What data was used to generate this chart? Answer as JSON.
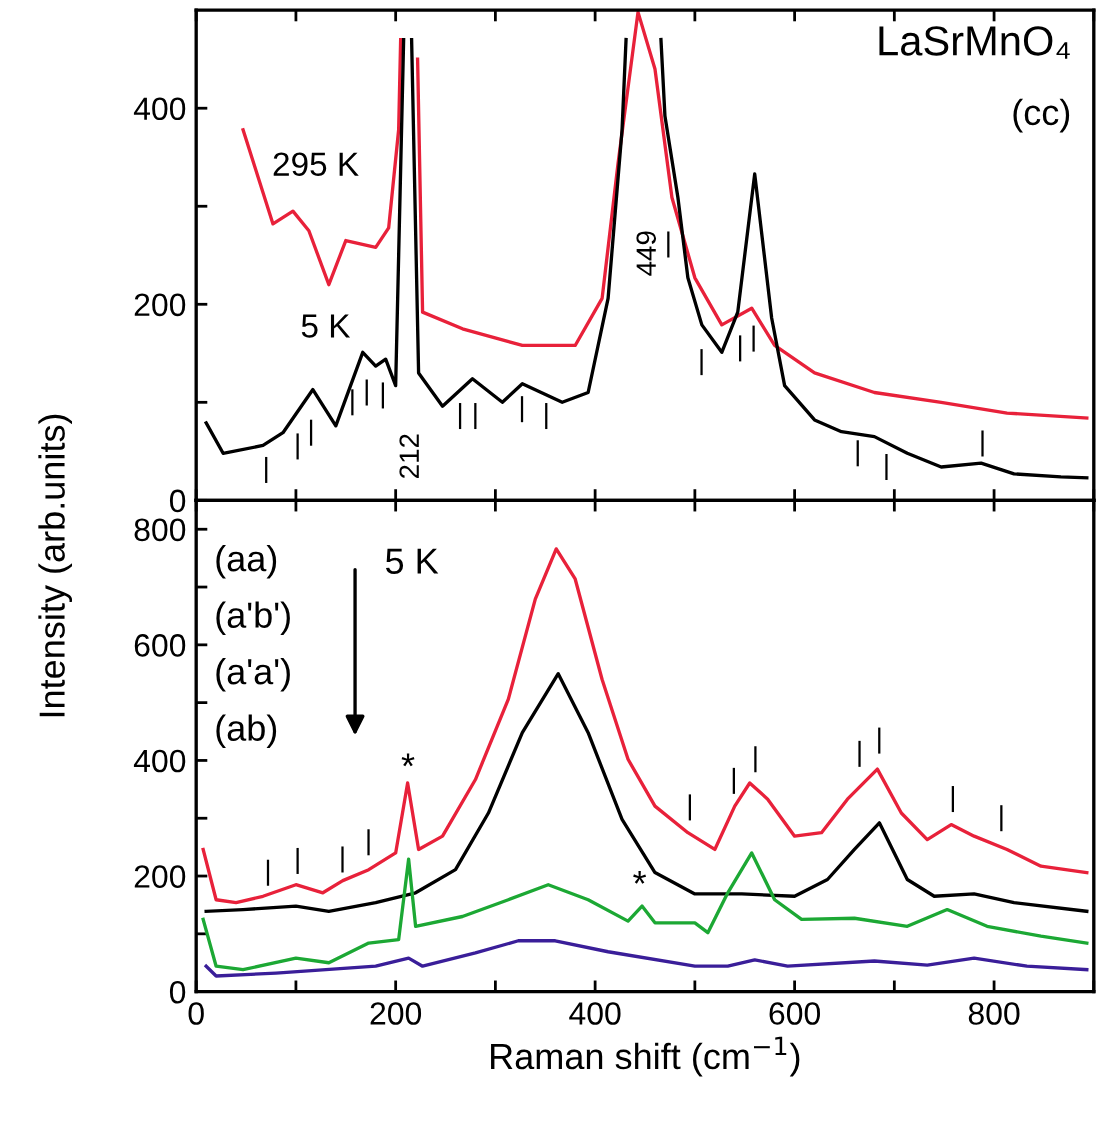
{
  "chart_data": [
    {
      "type": "line",
      "ylabel": "Intensity (arb.units)",
      "xlim": [
        0,
        900
      ],
      "ylim": [
        0,
        500
      ],
      "xticks": [
        0,
        {
          "value": 100,
          "label": null
        },
        200,
        {
          "value": 300,
          "label": null
        },
        400,
        {
          "value": 500,
          "label": null
        },
        600,
        {
          "value": 700,
          "label": null
        },
        800,
        {
          "value": 900,
          "label": null
        }
      ],
      "yticks": [
        0,
        {
          "value": 100,
          "label": null
        },
        200,
        {
          "value": 300,
          "label": null
        },
        400
      ],
      "tick_labels": "y",
      "grid": false,
      "legend": false,
      "series": [
        {
          "color": "#e8213a",
          "x": [
            47,
            77,
            97,
            113,
            133,
            150,
            180,
            193,
            203,
            205,
            207,
            220,
            222,
            227,
            267,
            327,
            380,
            407,
            423,
            443,
            460,
            477,
            500,
            527,
            557,
            580,
            620,
            680,
            747,
            813,
            893
          ],
          "values": [
            378,
            282,
            295,
            275,
            220,
            265,
            258,
            278,
            378,
            470,
            null,
            null,
            450,
            192,
            175,
            158,
            158,
            206,
            344,
            498,
            440,
            309,
            227,
            179,
            196,
            158,
            130,
            110,
            100,
            89,
            84
          ]
        },
        {
          "color": "#000000",
          "x": [
            10,
            27,
            67,
            87,
            117,
            140,
            167,
            180,
            190,
            200,
            208,
            210,
            214,
            216,
            223,
            247,
            277,
            307,
            327,
            367,
            393,
            413,
            427,
            431,
            437,
            460,
            466,
            470,
            483,
            493,
            507,
            527,
            543,
            560,
            577,
            590,
            620,
            647,
            680,
            713,
            747,
            787,
            820,
            867,
            893
          ],
          "values": [
            79,
            48,
            56,
            69,
            113,
            76,
            151,
            137,
            144,
            117,
            470,
            null,
            null,
            470,
            130,
            96,
            124,
            100,
            119,
            100,
            110,
            206,
            378,
            470,
            null,
            null,
            470,
            392,
            309,
            227,
            179,
            151,
            192,
            333,
            186,
            117,
            82,
            70,
            65,
            48,
            34,
            38,
            27,
            24,
            23
          ]
        }
      ],
      "annotations": [
        "LaSrMnO₄",
        "(cc)",
        "295 K",
        "5 K",
        "212",
        "449",
        "|",
        "|",
        "|",
        "|",
        "|",
        "|",
        "|",
        "|",
        "|",
        "|",
        "|",
        "|",
        "|",
        "|",
        "|",
        "|",
        "|"
      ]
    },
    {
      "type": "line",
      "xlabel": "Raman shift (cm$^{−1}$)",
      "xlim": [
        0,
        900
      ],
      "ylim": [
        0,
        850
      ],
      "xticks": [
        0,
        {
          "value": 100,
          "label": null
        },
        200,
        {
          "value": 300,
          "label": null
        },
        400,
        {
          "value": 500,
          "label": null
        },
        600,
        {
          "value": 700,
          "label": null
        },
        800,
        {
          "value": 900,
          "label": null
        }
      ],
      "yticks": [
        0,
        {
          "value": 100,
          "label": null
        },
        200,
        {
          "value": 300,
          "label": null
        },
        400,
        {
          "value": 500,
          "label": null
        },
        600,
        {
          "value": 700,
          "label": null
        },
        800
      ],
      "grid": false,
      "legend": false,
      "series": [
        {
          "color": "#e8213a",
          "x": [
            7,
            20,
            40,
            67,
            100,
            127,
            147,
            173,
            200,
            212,
            223,
            247,
            280,
            313,
            340,
            361,
            380,
            407,
            433,
            460,
            493,
            520,
            540,
            555,
            573,
            600,
            627,
            653,
            683,
            707,
            733,
            757,
            780,
            813,
            847,
            893
          ],
          "values": [
            246,
            159,
            154,
            165,
            185,
            171,
            192,
            211,
            240,
            361,
            246,
            269,
            367,
            506,
            679,
            766,
            714,
            540,
            402,
            321,
            275,
            246,
            321,
            361,
            333,
            269,
            275,
            333,
            385,
            309,
            263,
            289,
            269,
            246,
            217,
            206
          ]
        },
        {
          "color": "#000000",
          "x": [
            10,
            47,
            100,
            133,
            180,
            220,
            260,
            293,
            327,
            363,
            393,
            427,
            460,
            500,
            547,
            600,
            633,
            660,
            685,
            713,
            740,
            780,
            820,
            893
          ],
          "values": [
            139,
            142,
            148,
            139,
            154,
            171,
            211,
            309,
            448,
            550,
            448,
            298,
            206,
            169,
            169,
            165,
            194,
            246,
            292,
            194,
            165,
            169,
            154,
            139
          ]
        },
        {
          "color": "#1ca834",
          "x": [
            7,
            20,
            47,
            100,
            133,
            173,
            203,
            213,
            220,
            267,
            313,
            353,
            393,
            433,
            447,
            460,
            500,
            513,
            533,
            557,
            580,
            607,
            660,
            713,
            753,
            793,
            847,
            893
          ],
          "values": [
            125,
            44,
            38,
            58,
            50,
            84,
            90,
            229,
            113,
            130,
            159,
            185,
            159,
            122,
            148,
            119,
            119,
            102,
            171,
            240,
            159,
            125,
            127,
            113,
            142,
            113,
            96,
            84
          ]
        },
        {
          "color": "#3a1e99",
          "x": [
            10,
            20,
            80,
            180,
            213,
            227,
            280,
            323,
            360,
            413,
            500,
            533,
            560,
            593,
            680,
            733,
            780,
            833,
            893
          ],
          "values": [
            44,
            27,
            32,
            44,
            58,
            44,
            67,
            88,
            88,
            69,
            44,
            44,
            55,
            44,
            53,
            46,
            58,
            44,
            38
          ]
        }
      ],
      "annotations": [
        "(aa)",
        "(a'b')",
        "(a'a')",
        "(ab)",
        "5 K",
        "*",
        "*",
        "|",
        "|",
        "|",
        "|",
        "|",
        "|",
        "|",
        "|",
        "|",
        "|",
        "|"
      ]
    }
  ]
}
